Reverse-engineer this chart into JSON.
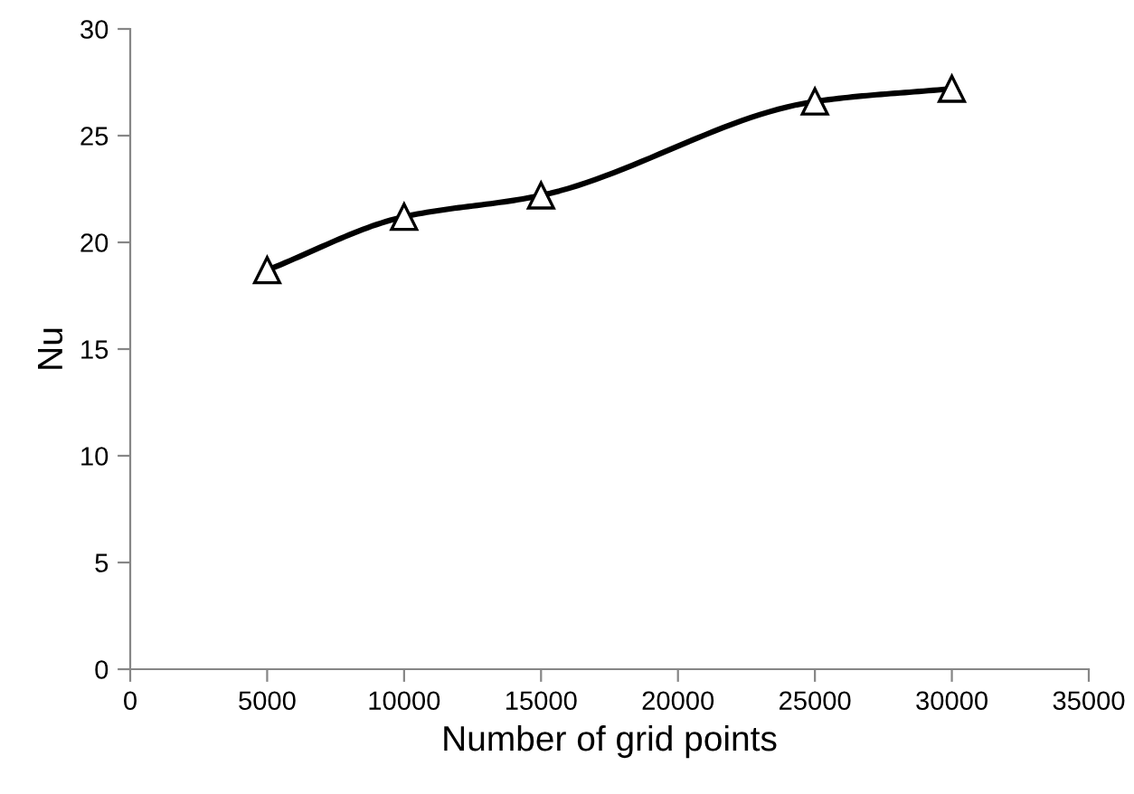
{
  "chart_data": {
    "type": "line",
    "xlabel": "Number of grid points",
    "ylabel": "Nu",
    "x": [
      5000,
      10000,
      15000,
      25000,
      30000
    ],
    "series": [
      {
        "color": "#000000",
        "values": [
          18.7,
          21.2,
          22.2,
          26.6,
          27.2
        ]
      }
    ],
    "xlim": [
      0,
      35000
    ],
    "xticks": [
      0,
      5000,
      10000,
      15000,
      20000,
      25000,
      30000,
      35000
    ],
    "ylim": [
      0,
      30
    ],
    "yticks": [
      0,
      5,
      10,
      15,
      20,
      25,
      30
    ],
    "marker": "triangle",
    "line_style": "solid",
    "grid": false,
    "legend": false
  }
}
